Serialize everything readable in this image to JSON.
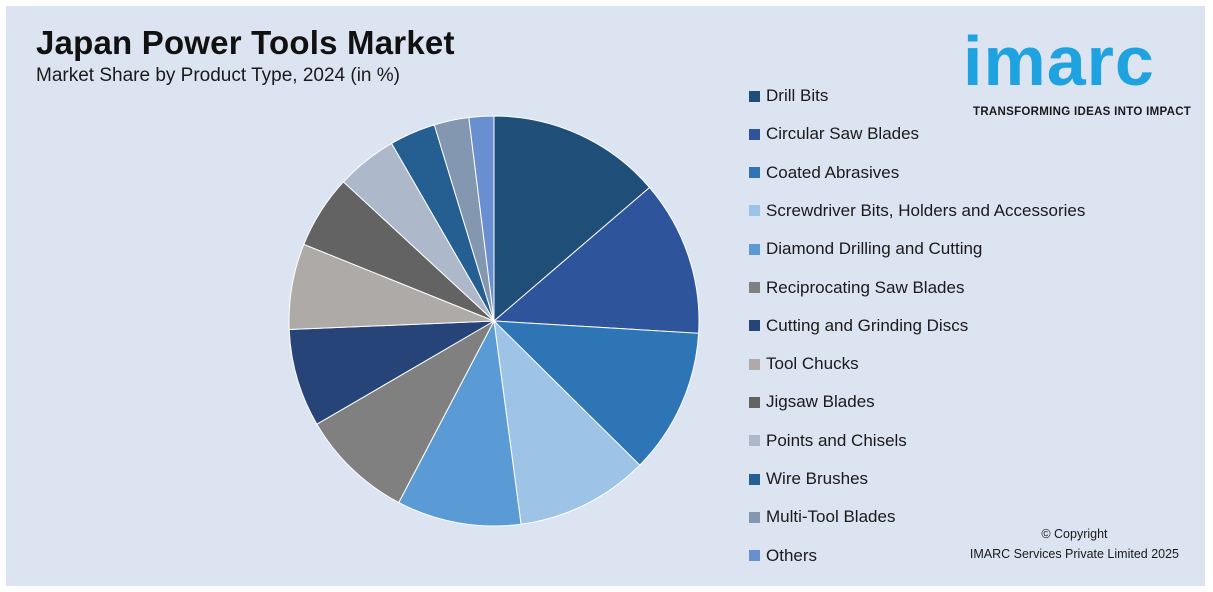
{
  "header": {
    "title": "Japan Power Tools Market",
    "subtitle": "Market Share by Product Type, 2024 (in %)"
  },
  "logo": {
    "word": "imarc",
    "tagline": "TRANSFORMING IDEAS INTO IMPACT",
    "color": "#1fa3e0"
  },
  "copyright": {
    "line1": "© Copyright",
    "line2": "IMARC Services Private Limited 2025"
  },
  "chart_data": {
    "type": "pie",
    "title": "Japan Power Tools Market",
    "subtitle": "Market Share by Product Type, 2024 (in %)",
    "legend_position": "right",
    "categories": [
      "Drill Bits",
      "Circular Saw Blades",
      "Coated Abrasives",
      "Screwdriver Bits, Holders and Accessories",
      "Diamond Drilling and Cutting",
      "Reciprocating Saw Blades",
      "Cutting and Grinding Discs",
      "Tool Chucks",
      "Jigsaw Blades",
      "Points and Chisels",
      "Wire Brushes",
      "Multi-Tool Blades",
      "Others"
    ],
    "values": [
      14.0,
      12.5,
      11.7,
      10.7,
      10.0,
      9.1,
      7.9,
      6.9,
      5.9,
      4.9,
      3.7,
      2.8,
      2.0
    ],
    "colors": [
      "#1f4e79",
      "#2e559c",
      "#2e75b6",
      "#9dc3e6",
      "#5b9bd5",
      "#808080",
      "#264478",
      "#aeaaa8",
      "#636363",
      "#adb9ca",
      "#255e91",
      "#8497b0",
      "#6a8fd0"
    ]
  }
}
